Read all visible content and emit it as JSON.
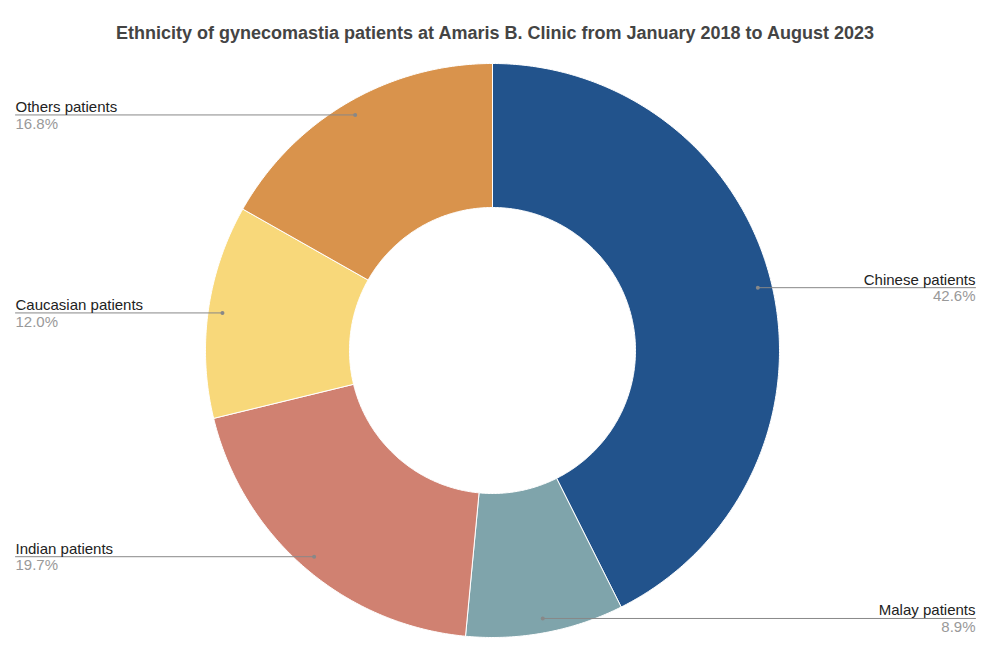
{
  "chart_data": {
    "type": "pie",
    "title": "Ethnicity of gynecomastia patients at Amaris B. Clinic from January 2018 to August 2023",
    "categories": [
      "Chinese patients",
      "Malay patients",
      "Indian patients",
      "Caucasian patients",
      "Others patients"
    ],
    "values": [
      42.6,
      8.9,
      19.7,
      12.0,
      16.8
    ],
    "value_labels": [
      "42.6%",
      "8.9%",
      "19.7%",
      "12.0%",
      "16.8%"
    ],
    "colors": [
      "#22538c",
      "#7fa4ab",
      "#d08171",
      "#f8d87a",
      "#d9934c"
    ],
    "data_labels": true
  }
}
